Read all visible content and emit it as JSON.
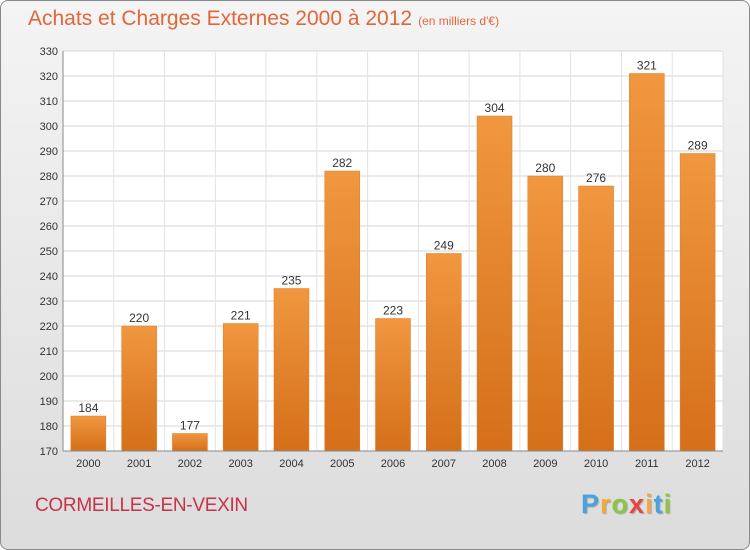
{
  "chart_data": {
    "type": "bar",
    "title": "Achats et Charges Externes 2000 à 2012",
    "subtitle": "(en milliers d'€)",
    "categories": [
      "2000",
      "2001",
      "2002",
      "2003",
      "2004",
      "2005",
      "2006",
      "2007",
      "2008",
      "2009",
      "2010",
      "2011",
      "2012"
    ],
    "values": [
      184,
      220,
      177,
      221,
      235,
      282,
      223,
      249,
      304,
      280,
      276,
      321,
      289
    ],
    "ylim": [
      170,
      330
    ],
    "yticks": [
      170,
      180,
      190,
      200,
      210,
      220,
      230,
      240,
      250,
      260,
      270,
      280,
      290,
      300,
      310,
      320,
      330
    ],
    "grid": true,
    "bar_color": "#f0973f",
    "bar_color_dark": "#d56f1a"
  },
  "commune": "CORMEILLES-EN-VEXIN",
  "brand": {
    "letters": [
      "P",
      "r",
      "o",
      "x",
      "i",
      "t",
      "i"
    ],
    "colors": [
      "#4aa3df",
      "#f2a93b",
      "#8cc63f",
      "#e8453c",
      "#f2a93b",
      "#4aa3df",
      "#8cc63f"
    ]
  }
}
